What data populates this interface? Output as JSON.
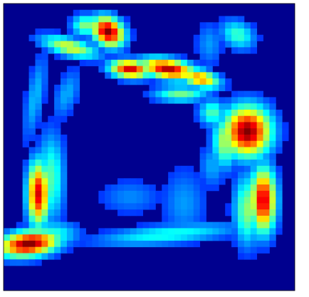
{
  "chart_data": {
    "type": "heatmap",
    "title": "",
    "xlabel": "",
    "ylabel": "",
    "colormap": "jet",
    "value_range": [
      0,
      1
    ],
    "grid": false,
    "legend": "none",
    "background_value": 0.0,
    "rows": 46,
    "cols": 46,
    "hotspots": [
      {
        "row": 4.5,
        "col": 16.5,
        "sx": 1.9,
        "sy": 1.5,
        "angle": 40,
        "peak": 1.0
      },
      {
        "row": 10.5,
        "col": 20.0,
        "sx": 2.2,
        "sy": 1.0,
        "angle": 5,
        "peak": 0.92
      },
      {
        "row": 10.5,
        "col": 26.0,
        "sx": 3.0,
        "sy": 1.1,
        "angle": 10,
        "peak": 0.95
      },
      {
        "row": 12.0,
        "col": 31.0,
        "sx": 2.2,
        "sy": 1.0,
        "angle": 15,
        "peak": 0.72
      },
      {
        "row": 20.5,
        "col": 38.5,
        "sx": 2.6,
        "sy": 2.8,
        "angle": 0,
        "peak": 1.0
      },
      {
        "row": 31.5,
        "col": 41.0,
        "sx": 1.4,
        "sy": 3.6,
        "angle": 0,
        "peak": 0.92
      },
      {
        "row": 30.5,
        "col": 5.5,
        "sx": 1.2,
        "sy": 3.6,
        "angle": 0,
        "peak": 0.9
      },
      {
        "row": 38.5,
        "col": 4.0,
        "sx": 3.3,
        "sy": 1.4,
        "angle": -8,
        "peak": 1.0
      },
      {
        "row": 7.0,
        "col": 10.5,
        "sx": 3.2,
        "sy": 1.0,
        "angle": 15,
        "peak": 0.55
      },
      {
        "row": 3.5,
        "col": 13.0,
        "sx": 1.5,
        "sy": 1.2,
        "angle": 0,
        "peak": 0.45
      },
      {
        "row": 14.5,
        "col": 28.0,
        "sx": 3.0,
        "sy": 0.9,
        "angle": 0,
        "peak": 0.42
      },
      {
        "row": 22.0,
        "col": 35.0,
        "sx": 1.4,
        "sy": 3.0,
        "angle": 0,
        "peak": 0.5
      },
      {
        "row": 33.0,
        "col": 38.5,
        "sx": 1.5,
        "sy": 4.0,
        "angle": 0,
        "peak": 0.45
      },
      {
        "row": 28.0,
        "col": 7.5,
        "sx": 1.5,
        "sy": 5.0,
        "angle": 0,
        "peak": 0.38
      },
      {
        "row": 37.0,
        "col": 7.5,
        "sx": 3.0,
        "sy": 1.5,
        "angle": 0,
        "peak": 0.35
      },
      {
        "row": 37.0,
        "col": 26.0,
        "sx": 8.0,
        "sy": 1.1,
        "angle": -5,
        "peak": 0.32
      },
      {
        "row": 31.0,
        "col": 20.0,
        "sx": 3.5,
        "sy": 2.0,
        "angle": 0,
        "peak": 0.16
      },
      {
        "row": 32.0,
        "col": 28.5,
        "sx": 2.5,
        "sy": 4.0,
        "angle": 0,
        "peak": 0.18
      },
      {
        "row": 5.0,
        "col": 37.0,
        "sx": 2.0,
        "sy": 1.5,
        "angle": 30,
        "peak": 0.36
      },
      {
        "row": 6.5,
        "col": 32.5,
        "sx": 1.5,
        "sy": 2.5,
        "angle": 0,
        "peak": 0.18
      },
      {
        "row": 15.0,
        "col": 5.0,
        "sx": 1.0,
        "sy": 5.0,
        "angle": 10,
        "peak": 0.22
      },
      {
        "row": 14.5,
        "col": 10.0,
        "sx": 1.3,
        "sy": 3.0,
        "angle": 20,
        "peak": 0.2
      },
      {
        "row": 17.5,
        "col": 33.0,
        "sx": 1.5,
        "sy": 1.5,
        "angle": 0,
        "peak": 0.38
      },
      {
        "row": 26.0,
        "col": 33.0,
        "sx": 1.5,
        "sy": 2.5,
        "angle": 0,
        "peak": 0.2
      }
    ]
  }
}
